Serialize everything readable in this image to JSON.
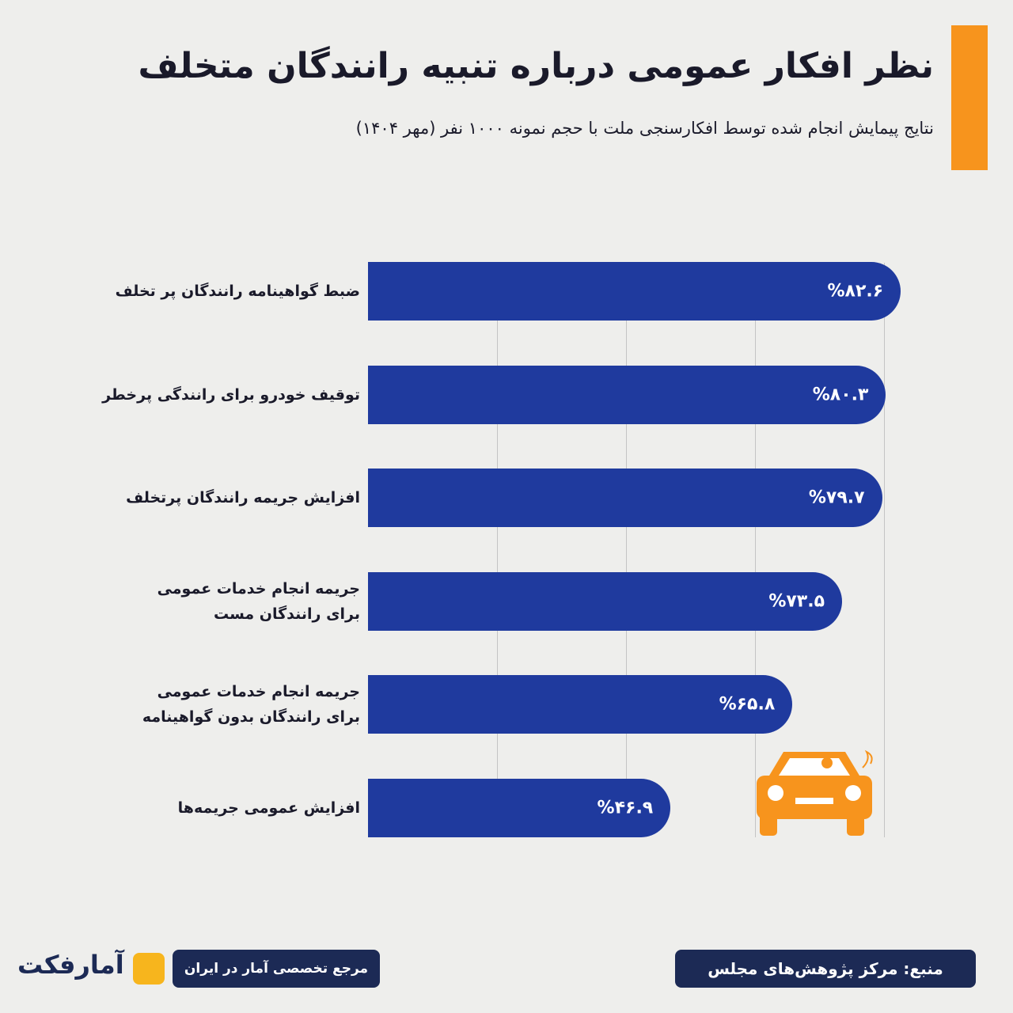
{
  "chart_data": {
    "type": "bar",
    "orientation": "horizontal",
    "title": "نظر افکار عمومی درباره تنبیه رانندگان متخلف",
    "subtitle": "نتایج پیمایش انجام شده توسط افکارسنجی ملت با حجم نمونه ۱۰۰۰ نفر (مهر ۱۴۰۴)",
    "categories": [
      "ضبط گواهینامه رانندگان پر تخلف",
      "توقیف خودرو برای رانندگی پرخطر",
      "افزایش جریمه رانندگان پرتخلف",
      "جریمه انجام خدمات عمومی\nبرای رانندگان مست",
      "جریمه انجام خدمات عمومی\nبرای رانندگان بدون گواهینامه",
      "افزایش عمومی جریمه‌ها"
    ],
    "values": [
      82.6,
      80.3,
      79.7,
      73.5,
      65.8,
      46.9
    ],
    "value_labels": [
      "%۸۲.۶",
      "%۸۰.۳",
      "%۷۹.۷",
      "%۷۳.۵",
      "%۶۵.۸",
      "%۴۶.۹"
    ],
    "color": "#1f3a9e",
    "xlim": [
      0,
      100
    ],
    "xticks": [
      20,
      40,
      60,
      80
    ],
    "grid": true,
    "source": "منبع: مرکز پژوهش‌های مجلس",
    "brand": "آمارفکت",
    "tagline": "مرجع تخصصی آمار در ایران"
  }
}
